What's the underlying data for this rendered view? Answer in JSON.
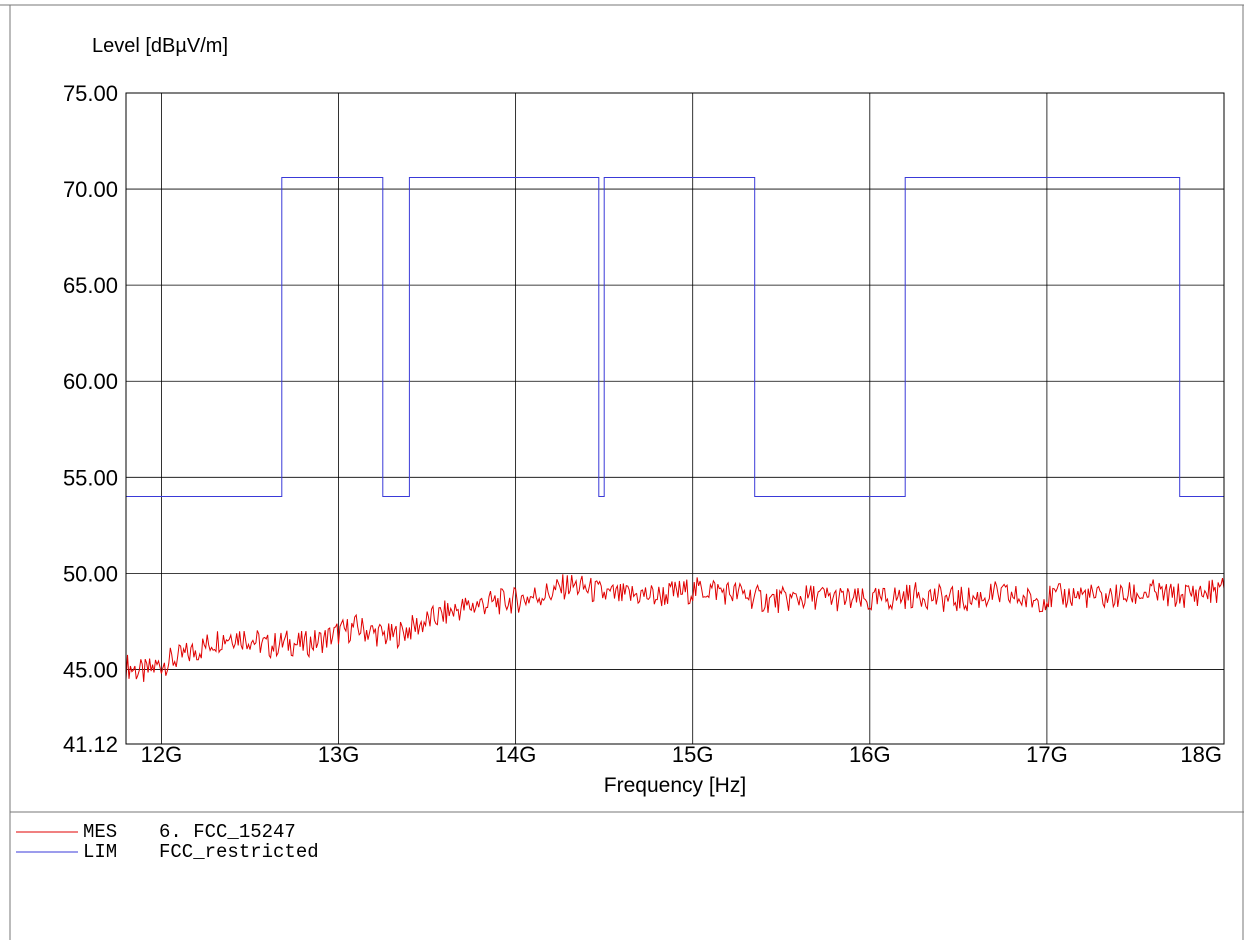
{
  "chart_data": {
    "type": "line",
    "ylabel": "Level [dBµV/m]",
    "xlabel": "Frequency [Hz]",
    "xlim": [
      11.8,
      18.0
    ],
    "ylim": [
      41.12,
      75.0
    ],
    "x_unit": "GHz",
    "y_ticks": [
      "41.12",
      "45.00",
      "50.00",
      "55.00",
      "60.00",
      "65.00",
      "70.00",
      "75.00"
    ],
    "y_tick_values": [
      41.12,
      45.0,
      50.0,
      55.0,
      60.0,
      65.0,
      70.0,
      75.0
    ],
    "x_ticks": [
      "12G",
      "13G",
      "14G",
      "15G",
      "16G",
      "17G",
      "18G"
    ],
    "x_tick_values": [
      12,
      13,
      14,
      15,
      16,
      17,
      18
    ],
    "grid": true,
    "series": [
      {
        "name": "FCC_restricted",
        "color": "#3a3ad8",
        "step": true,
        "x": [
          11.8,
          12.68,
          12.68,
          13.25,
          13.25,
          13.4,
          13.4,
          14.47,
          14.47,
          14.5,
          14.5,
          15.35,
          15.35,
          16.2,
          16.2,
          17.75,
          17.75,
          18.0
        ],
        "values": [
          54.0,
          54.0,
          70.6,
          70.6,
          54.0,
          54.0,
          70.6,
          70.6,
          54.0,
          54.0,
          70.6,
          70.6,
          54.0,
          54.0,
          70.6,
          70.6,
          54.0,
          54.0
        ]
      },
      {
        "name": "6. FCC_15247",
        "color": "#e00000",
        "x": [
          11.8,
          11.9,
          12.0,
          12.1,
          12.2,
          12.3,
          12.4,
          12.5,
          12.6,
          12.7,
          12.8,
          12.9,
          13.0,
          13.1,
          13.2,
          13.3,
          13.4,
          13.5,
          13.6,
          13.7,
          13.8,
          13.9,
          14.0,
          14.1,
          14.2,
          14.3,
          14.4,
          14.5,
          14.6,
          14.7,
          14.8,
          14.9,
          15.0,
          15.1,
          15.2,
          15.3,
          15.4,
          15.5,
          15.6,
          15.7,
          15.8,
          15.9,
          16.0,
          16.1,
          16.2,
          16.3,
          16.4,
          16.5,
          16.6,
          16.7,
          16.8,
          16.9,
          17.0,
          17.1,
          17.2,
          17.3,
          17.4,
          17.5,
          17.6,
          17.7,
          17.8,
          17.9,
          18.0
        ],
        "values": [
          45.2,
          44.8,
          45.3,
          45.6,
          46.0,
          46.5,
          46.8,
          46.6,
          46.2,
          46.4,
          46.3,
          46.5,
          46.9,
          47.2,
          46.9,
          46.7,
          47.1,
          47.5,
          47.9,
          48.2,
          48.4,
          48.5,
          48.6,
          48.8,
          49.0,
          49.4,
          49.2,
          48.9,
          48.8,
          48.9,
          48.8,
          49.0,
          49.1,
          49.2,
          49.0,
          48.9,
          48.6,
          48.6,
          48.7,
          48.8,
          48.7,
          48.6,
          48.5,
          48.7,
          48.8,
          48.9,
          48.7,
          48.6,
          48.7,
          48.9,
          48.8,
          48.6,
          48.7,
          48.8,
          48.9,
          48.7,
          48.8,
          48.9,
          49.0,
          48.8,
          48.9,
          49.0,
          49.2
        ]
      }
    ]
  },
  "legend": [
    {
      "code": "MES",
      "label": "6. FCC_15247",
      "color": "#e00000"
    },
    {
      "code": "LIM",
      "label": "FCC_restricted",
      "color": "#3a3ad8"
    }
  ]
}
